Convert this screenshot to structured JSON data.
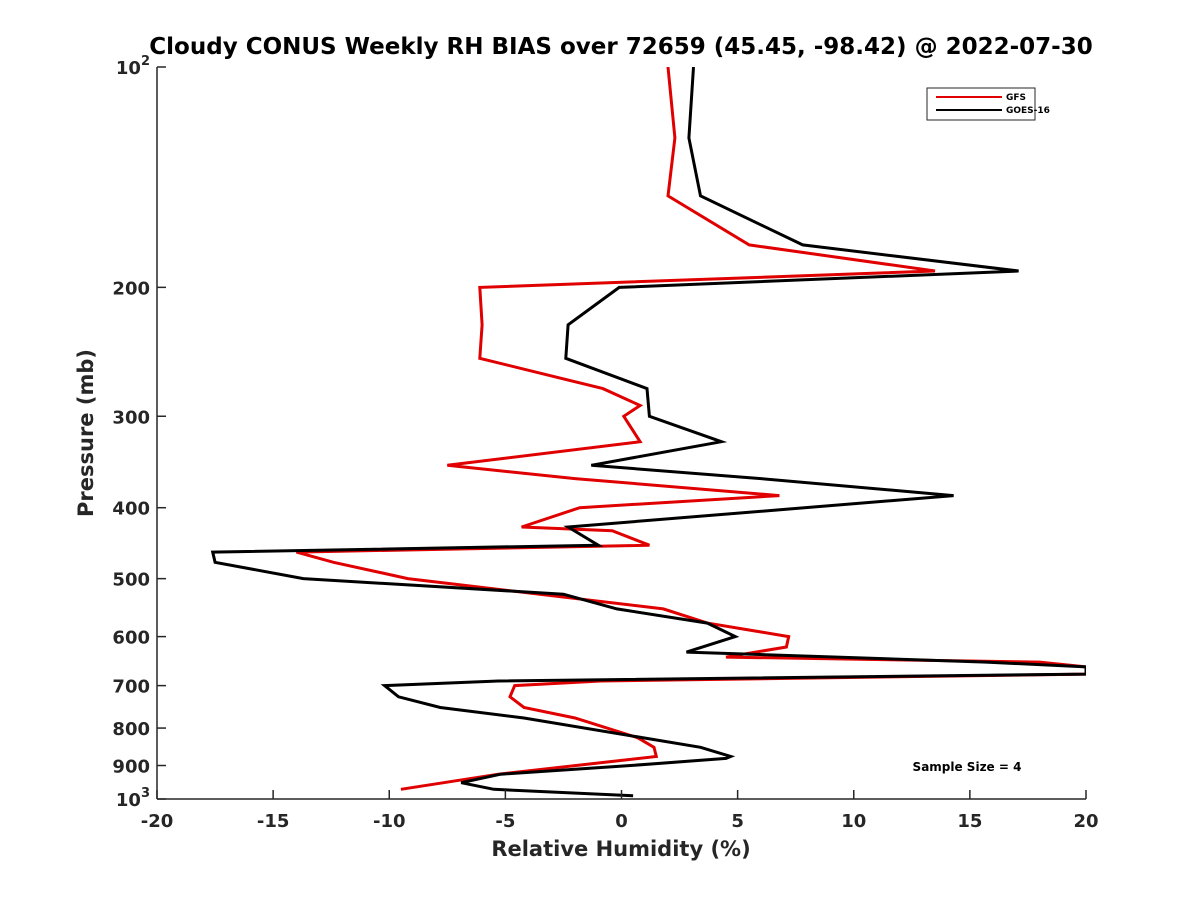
{
  "chart_data": {
    "type": "line",
    "title": "Cloudy CONUS Weekly RH BIAS over 72659 (45.45, -98.42) @ 2022-07-30",
    "xlabel": "Relative Humidity (%)",
    "ylabel": "Pressure (mb)",
    "xlim": [
      -20,
      20
    ],
    "ylim": [
      100,
      1000
    ],
    "y_scale": "log",
    "y_reversed": true,
    "x_ticks": [
      "-20",
      "-15",
      "-10",
      "-5",
      "0",
      "5",
      "10",
      "15",
      "20"
    ],
    "y_ticks": [
      {
        "value": 100,
        "base": "10",
        "exp": "2"
      },
      {
        "value": 200,
        "label": "200"
      },
      {
        "value": 300,
        "label": "300"
      },
      {
        "value": 400,
        "label": "400"
      },
      {
        "value": 500,
        "label": "500"
      },
      {
        "value": 600,
        "label": "600"
      },
      {
        "value": 700,
        "label": "700"
      },
      {
        "value": 800,
        "label": "800"
      },
      {
        "value": 900,
        "label": "900"
      },
      {
        "value": 1000,
        "base": "10",
        "exp": "3"
      }
    ],
    "grid": false,
    "legend_position": "top-right",
    "annotation": "Sample Size = 4",
    "series": [
      {
        "name": "GFS",
        "color": "#e00000",
        "points": [
          [
            2.0,
            100
          ],
          [
            2.3,
            125
          ],
          [
            2.0,
            150
          ],
          [
            5.5,
            175
          ],
          [
            13.5,
            190
          ],
          [
            -6.1,
            200
          ],
          [
            -6.0,
            225
          ],
          [
            -6.1,
            250
          ],
          [
            -0.8,
            275
          ],
          [
            0.8,
            290
          ],
          [
            0.1,
            300
          ],
          [
            0.8,
            325
          ],
          [
            -7.5,
            350
          ],
          [
            -2.0,
            365
          ],
          [
            6.8,
            385
          ],
          [
            -1.8,
            400
          ],
          [
            -4.3,
            425
          ],
          [
            -0.4,
            430
          ],
          [
            1.2,
            450
          ],
          [
            -14.0,
            460
          ],
          [
            -12.4,
            475
          ],
          [
            -9.2,
            500
          ],
          [
            1.8,
            550
          ],
          [
            3.7,
            575
          ],
          [
            7.2,
            600
          ],
          [
            7.1,
            620
          ],
          [
            4.5,
            640
          ],
          [
            18.0,
            650
          ],
          [
            20.0,
            660
          ],
          [
            20.0,
            675
          ],
          [
            -0.9,
            690
          ],
          [
            -4.6,
            700
          ],
          [
            -4.8,
            725
          ],
          [
            -4.2,
            750
          ],
          [
            -2.0,
            775
          ],
          [
            0.7,
            825
          ],
          [
            1.4,
            850
          ],
          [
            1.5,
            875
          ],
          [
            -5.3,
            925
          ],
          [
            -9.5,
            970
          ]
        ]
      },
      {
        "name": "GOES-16",
        "color": "#000000",
        "points": [
          [
            3.1,
            100
          ],
          [
            2.9,
            125
          ],
          [
            3.4,
            150
          ],
          [
            7.8,
            175
          ],
          [
            17.1,
            190
          ],
          [
            -0.1,
            200
          ],
          [
            -2.3,
            225
          ],
          [
            -2.4,
            250
          ],
          [
            1.1,
            275
          ],
          [
            1.2,
            300
          ],
          [
            4.3,
            325
          ],
          [
            -1.3,
            350
          ],
          [
            6.0,
            365
          ],
          [
            14.3,
            385
          ],
          [
            -2.3,
            425
          ],
          [
            -1.0,
            450
          ],
          [
            -17.6,
            460
          ],
          [
            -17.5,
            475
          ],
          [
            -13.7,
            500
          ],
          [
            -2.5,
            525
          ],
          [
            -0.2,
            550
          ],
          [
            3.7,
            575
          ],
          [
            4.9,
            600
          ],
          [
            2.8,
            630
          ],
          [
            15.7,
            650
          ],
          [
            20.0,
            660
          ],
          [
            20.0,
            675
          ],
          [
            -5.3,
            690
          ],
          [
            -10.2,
            700
          ],
          [
            -9.6,
            725
          ],
          [
            -7.8,
            750
          ],
          [
            -4.2,
            775
          ],
          [
            3.4,
            850
          ],
          [
            4.7,
            875
          ],
          [
            4.5,
            880
          ],
          [
            0.4,
            900
          ],
          [
            -5.2,
            925
          ],
          [
            -6.9,
            950
          ],
          [
            -5.5,
            970
          ],
          [
            0.5,
            990
          ]
        ]
      }
    ]
  }
}
